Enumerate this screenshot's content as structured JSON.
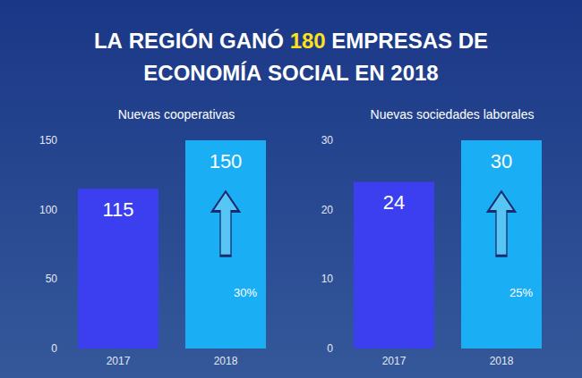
{
  "title": "LA REGIÓN GANÓ 180 EMPRESAS DE ECONOMÍA SOCIAL EN 2018",
  "title_highlight": "180",
  "chart_data": [
    {
      "type": "bar",
      "title": "Nuevas cooperativas",
      "categories": [
        "2017",
        "2018"
      ],
      "values": [
        115,
        150
      ],
      "colors": [
        "#3b3ff0",
        "#1aaef5"
      ],
      "ylim": [
        0,
        150
      ],
      "yticks": [
        0,
        50,
        100,
        150
      ],
      "grid": false,
      "data_labels": true,
      "annotations": [
        {
          "text": "30%",
          "category": "2018"
        }
      ]
    },
    {
      "type": "bar",
      "title": "Nuevas sociedades laborales",
      "categories": [
        "2017",
        "2018"
      ],
      "values": [
        24,
        30
      ],
      "colors": [
        "#3b3ff0",
        "#1aaef5"
      ],
      "ylim": [
        0,
        30
      ],
      "yticks": [
        0,
        10,
        20,
        30
      ],
      "grid": false,
      "data_labels": true,
      "annotations": [
        {
          "text": "25%",
          "category": "2018"
        }
      ]
    }
  ]
}
